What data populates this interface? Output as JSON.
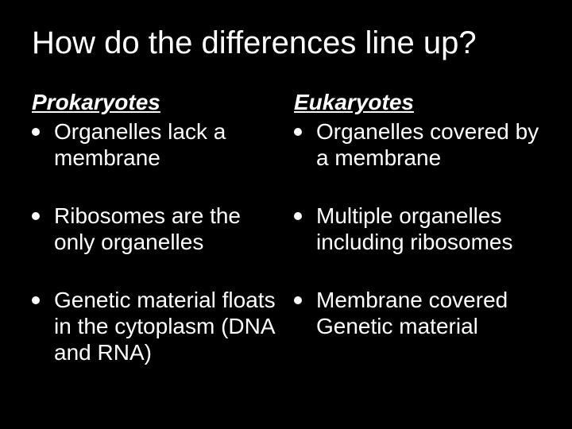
{
  "slide": {
    "title": "How do the differences line up?",
    "background_color": "#000000",
    "text_color": "#ffffff",
    "bullet_color": "#ffffff",
    "title_fontsize": 40,
    "heading_fontsize": 28,
    "body_fontsize": 28,
    "columns": [
      {
        "heading": "Prokaryotes",
        "items": [
          "Organelles lack a membrane",
          "Ribosomes are the only organelles",
          "Genetic material floats in the cytoplasm (DNA and RNA)"
        ]
      },
      {
        "heading": "Eukaryotes",
        "items": [
          "Organelles covered by a membrane",
          "Multiple organelles including ribosomes",
          "Membrane covered Genetic material"
        ]
      }
    ]
  }
}
